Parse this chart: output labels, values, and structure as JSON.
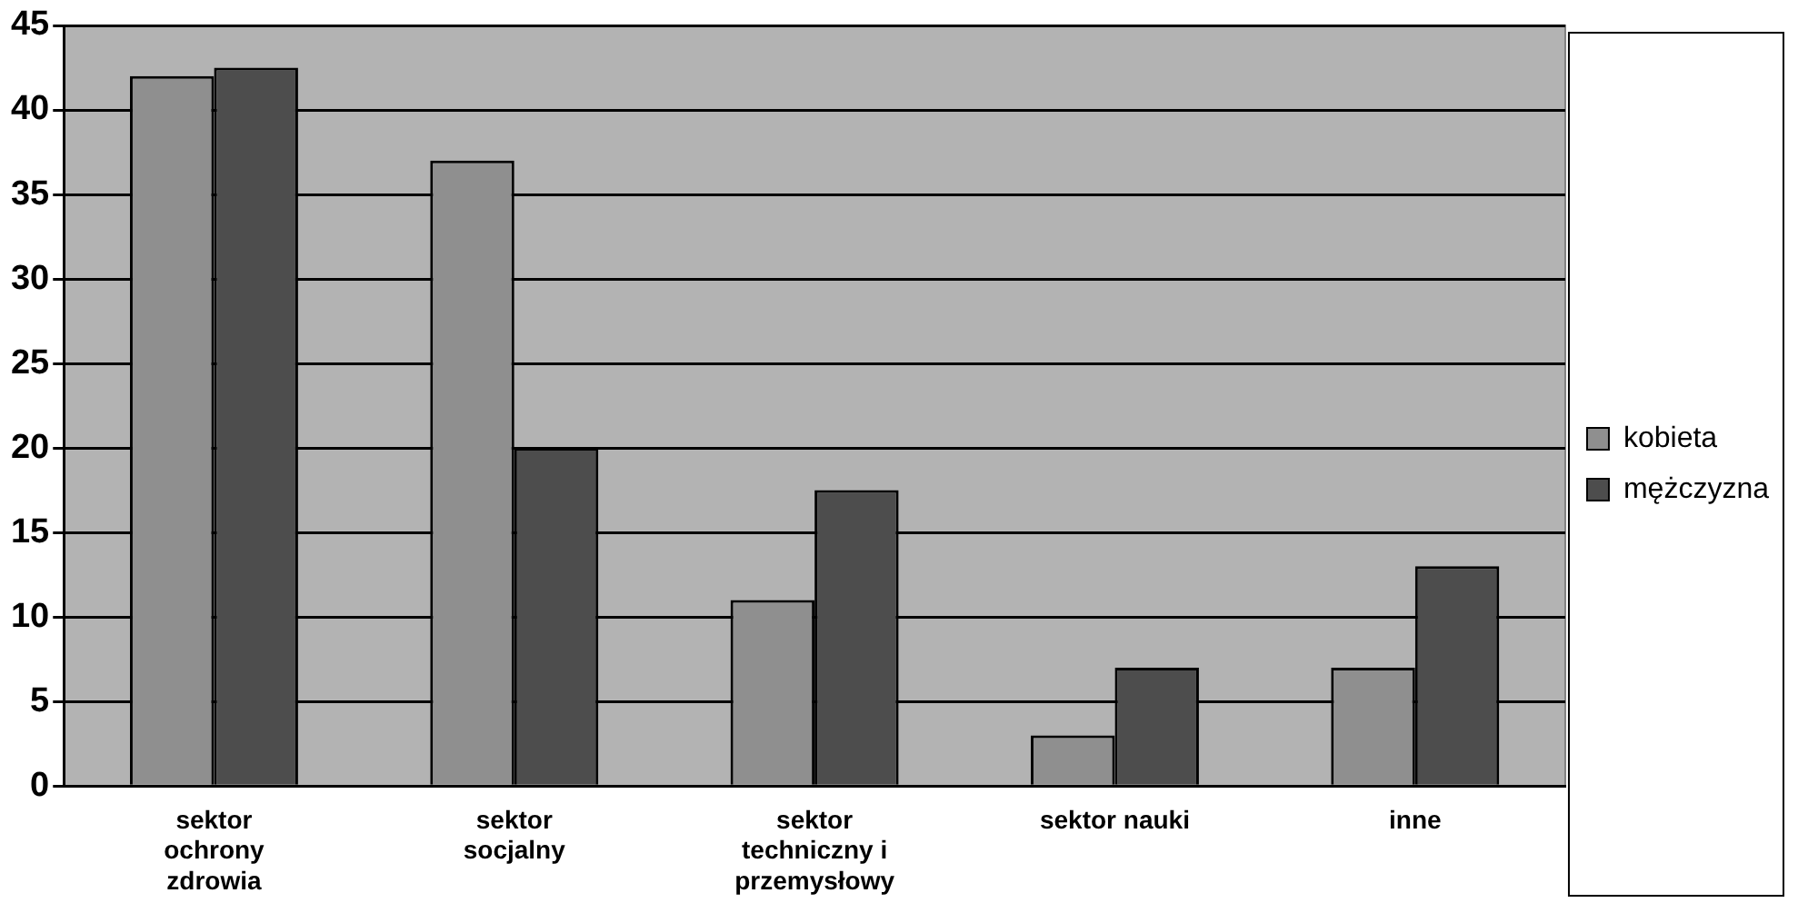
{
  "chart_data": {
    "type": "bar",
    "categories": [
      "sektor ochrony zdrowia",
      "sektor socjalny",
      "sektor techniczny i przemysłowy",
      "sektor nauki",
      "inne"
    ],
    "series": [
      {
        "name": "kobieta",
        "color": "#8f8f8f",
        "values": [
          42,
          37,
          11,
          3,
          7
        ]
      },
      {
        "name": "mężczyzna",
        "color": "#4d4d4d",
        "values": [
          42.5,
          20,
          17.5,
          7,
          13
        ]
      }
    ],
    "ylim": [
      0,
      45
    ],
    "yticks": [
      0,
      5,
      10,
      15,
      20,
      25,
      30,
      35,
      40,
      45
    ],
    "grid": "y",
    "legend": "right"
  }
}
